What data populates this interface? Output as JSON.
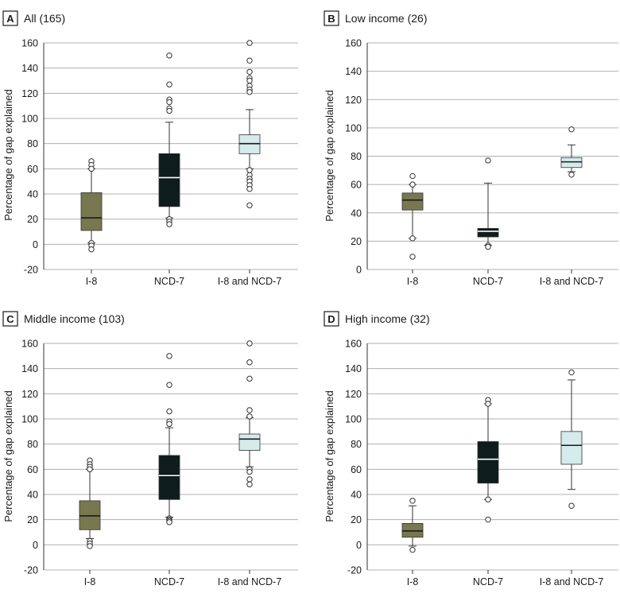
{
  "figure": {
    "ylabel": "Percentage of gap explained",
    "categories": [
      "I-8",
      "NCD-7",
      "I-8 and NCD-7"
    ],
    "colors": {
      "I-8": "#787850",
      "NCD-7": "#0e1c1c",
      "I-8 and NCD-7": "#d6ebec",
      "grid": "#b0b0b0",
      "axis": "#333333",
      "badge_border": "#1a1a1a"
    }
  },
  "chart_data": [
    {
      "type": "box",
      "letter": "A",
      "title": "All (165)",
      "xlabel": "",
      "ylabel": "Percentage of gap explained",
      "ylim": [
        -20,
        160
      ],
      "yticks": [
        160,
        140,
        120,
        100,
        80,
        60,
        40,
        20,
        0,
        -20
      ],
      "grid": true,
      "boxes": [
        {
          "category": "I-8",
          "whisker_low": 1,
          "q1": 11,
          "median": 21,
          "q3": 41,
          "whisker_high": 60,
          "outliers": [
            66,
            63,
            60,
            1,
            -1,
            -4
          ]
        },
        {
          "category": "NCD-7",
          "whisker_low": 21,
          "q1": 30,
          "median": 53,
          "q3": 72,
          "whisker_high": 97,
          "outliers": [
            150,
            127,
            115,
            113,
            108,
            106,
            20,
            18,
            16
          ]
        },
        {
          "category": "I-8 and NCD-7",
          "whisker_low": 60,
          "q1": 72,
          "median": 80,
          "q3": 87,
          "whisker_high": 107,
          "outliers": [
            160,
            146,
            137,
            132,
            130,
            126,
            123,
            121,
            59,
            55,
            52,
            50,
            47,
            44,
            31
          ]
        }
      ]
    },
    {
      "type": "box",
      "letter": "B",
      "title": "Low income (26)",
      "xlabel": "",
      "ylabel": "Percentage of gap explained",
      "ylim": [
        0,
        160
      ],
      "yticks": [
        160,
        140,
        120,
        100,
        80,
        60,
        40,
        20,
        0
      ],
      "grid": true,
      "boxes": [
        {
          "category": "I-8",
          "whisker_low": 22,
          "q1": 42,
          "median": 49,
          "q3": 54,
          "whisker_high": 60,
          "outliers": [
            66,
            60,
            22,
            9
          ]
        },
        {
          "category": "NCD-7",
          "whisker_low": 17,
          "q1": 23,
          "median": 27,
          "q3": 29,
          "whisker_high": 61,
          "outliers": [
            77,
            17,
            16
          ]
        },
        {
          "category": "I-8 and NCD-7",
          "whisker_low": 69,
          "q1": 72,
          "median": 76,
          "q3": 79,
          "whisker_high": 88,
          "outliers": [
            99,
            67
          ]
        }
      ]
    },
    {
      "type": "box",
      "letter": "C",
      "title": "Middle income (103)",
      "xlabel": "",
      "ylabel": "Percentage of gap explained",
      "ylim": [
        -20,
        160
      ],
      "yticks": [
        160,
        140,
        120,
        100,
        80,
        60,
        40,
        20,
        0,
        -20
      ],
      "grid": true,
      "boxes": [
        {
          "category": "I-8",
          "whisker_low": 5,
          "q1": 12,
          "median": 23,
          "q3": 35,
          "whisker_high": 60,
          "outliers": [
            67,
            64,
            62,
            60,
            3,
            1,
            -1
          ]
        },
        {
          "category": "NCD-7",
          "whisker_low": 22,
          "q1": 36,
          "median": 55,
          "q3": 71,
          "whisker_high": 93,
          "outliers": [
            150,
            127,
            106,
            98,
            96,
            21,
            20,
            19,
            18
          ]
        },
        {
          "category": "I-8 and NCD-7",
          "whisker_low": 62,
          "q1": 75,
          "median": 84,
          "q3": 88,
          "whisker_high": 101,
          "outliers": [
            160,
            145,
            132,
            107,
            102,
            60,
            58,
            52,
            48
          ]
        }
      ]
    },
    {
      "type": "box",
      "letter": "D",
      "title": "High income (32)",
      "xlabel": "",
      "ylabel": "Percentage of gap explained",
      "ylim": [
        -20,
        160
      ],
      "yticks": [
        160,
        140,
        120,
        100,
        80,
        60,
        40,
        20,
        0,
        -20
      ],
      "grid": true,
      "boxes": [
        {
          "category": "I-8",
          "whisker_low": -1,
          "q1": 6,
          "median": 11,
          "q3": 17,
          "whisker_high": 31,
          "outliers": [
            35,
            -4
          ]
        },
        {
          "category": "NCD-7",
          "whisker_low": 36,
          "q1": 49,
          "median": 68,
          "q3": 82,
          "whisker_high": 112,
          "outliers": [
            115,
            112,
            36,
            20
          ]
        },
        {
          "category": "I-8 and NCD-7",
          "whisker_low": 44,
          "q1": 64,
          "median": 79,
          "q3": 90,
          "whisker_high": 131,
          "outliers": [
            137,
            31
          ]
        }
      ]
    }
  ]
}
